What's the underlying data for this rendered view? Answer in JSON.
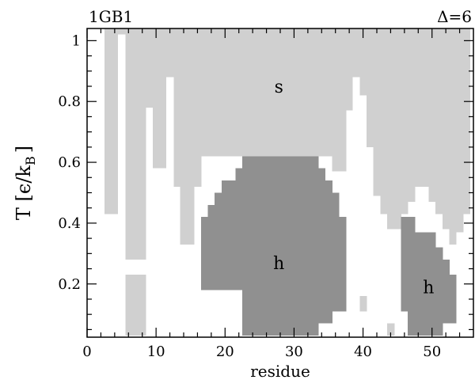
{
  "chart_data": {
    "type": "heatmap",
    "title_left": "1GB1",
    "title_right": "Δ=6",
    "xlabel": "residue",
    "ylabel": {
      "main": "T  [ϵ/k",
      "sub": "B",
      "close": "]"
    },
    "xlim": [
      0,
      56
    ],
    "ylim": [
      0.025,
      1.04
    ],
    "xticks": [
      "0",
      "10",
      "20",
      "30",
      "40",
      "50"
    ],
    "xtick_values": [
      0,
      10,
      20,
      30,
      40,
      50
    ],
    "yticks": [
      "0.2",
      "0.4",
      "0.6",
      "0.8",
      "1"
    ],
    "ytick_values": [
      0.2,
      0.4,
      0.6,
      0.8,
      1.0
    ],
    "colors": {
      "strand": "#d0d0d0",
      "helix": "#909090",
      "coil": "#ffffff",
      "frame": "#000000"
    },
    "region_labels": [
      {
        "text": "s",
        "x": 27.8,
        "y": 0.85,
        "color": "#000000"
      },
      {
        "text": "h",
        "x": 27.8,
        "y": 0.27,
        "color": "#ffffff"
      },
      {
        "text": "h",
        "x": 49.5,
        "y": 0.19,
        "color": "#ffffff"
      }
    ],
    "strand_columns": [
      [
        3,
        0.43
      ],
      [
        4,
        0.43
      ],
      [
        5,
        0.37
      ],
      [
        6,
        0.28
      ],
      [
        7,
        0.28
      ],
      [
        8,
        0.28
      ],
      [
        9,
        0.78
      ],
      [
        10,
        0.58
      ],
      [
        11,
        0.58
      ],
      [
        12,
        0.58
      ],
      [
        13,
        0.52
      ],
      [
        14,
        0.33
      ],
      [
        15,
        0.33
      ],
      [
        16,
        0.52
      ],
      [
        17,
        0.62
      ],
      [
        18,
        0.62
      ],
      [
        19,
        0.62
      ],
      [
        20,
        0.62
      ],
      [
        21,
        0.62
      ],
      [
        22,
        0.62
      ],
      [
        23,
        0.62
      ],
      [
        24,
        0.62
      ],
      [
        25,
        0.62
      ],
      [
        26,
        0.62
      ],
      [
        27,
        0.62
      ],
      [
        28,
        0.62
      ],
      [
        29,
        0.62
      ],
      [
        30,
        0.62
      ],
      [
        31,
        0.62
      ],
      [
        32,
        0.62
      ],
      [
        33,
        0.62
      ],
      [
        34,
        0.62
      ],
      [
        35,
        0.62
      ],
      [
        36,
        0.57
      ],
      [
        37,
        0.57
      ],
      [
        38,
        0.77
      ],
      [
        39,
        0.87
      ],
      [
        40,
        0.82
      ],
      [
        41,
        0.65
      ],
      [
        42,
        0.49
      ],
      [
        43,
        0.43
      ],
      [
        44,
        0.38
      ],
      [
        45,
        0.38
      ],
      [
        46,
        0.43
      ],
      [
        47,
        0.47
      ],
      [
        48,
        0.52
      ],
      [
        49,
        0.52
      ],
      [
        50,
        0.47
      ],
      [
        51,
        0.43
      ],
      [
        52,
        0.38
      ],
      [
        53,
        0.33
      ],
      [
        54,
        0.37
      ],
      [
        55,
        0.43
      ]
    ],
    "strand_extra": [
      [
        6,
        0.03,
        0.23
      ],
      [
        7,
        0.03,
        0.23
      ],
      [
        8,
        0.03,
        0.23
      ],
      [
        40,
        0.11,
        0.16
      ],
      [
        44,
        0.03,
        0.07
      ]
    ],
    "white_spikes": [
      [
        5,
        1.02
      ],
      [
        12,
        0.88
      ],
      [
        39,
        0.88
      ]
    ],
    "helix_columns": [
      [
        17,
        0.18,
        0.42
      ],
      [
        18,
        0.18,
        0.46
      ],
      [
        19,
        0.18,
        0.5
      ],
      [
        20,
        0.18,
        0.54
      ],
      [
        21,
        0.18,
        0.54
      ],
      [
        22,
        0.18,
        0.58
      ],
      [
        23,
        0.03,
        0.62
      ],
      [
        24,
        0.03,
        0.62
      ],
      [
        25,
        0.03,
        0.62
      ],
      [
        26,
        0.03,
        0.62
      ],
      [
        27,
        0.03,
        0.62
      ],
      [
        28,
        0.03,
        0.62
      ],
      [
        29,
        0.03,
        0.62
      ],
      [
        30,
        0.03,
        0.62
      ],
      [
        31,
        0.03,
        0.62
      ],
      [
        32,
        0.03,
        0.62
      ],
      [
        33,
        0.03,
        0.62
      ],
      [
        34,
        0.07,
        0.58
      ],
      [
        35,
        0.07,
        0.54
      ],
      [
        36,
        0.11,
        0.5
      ],
      [
        37,
        0.11,
        0.42
      ],
      [
        46,
        0.11,
        0.42
      ],
      [
        47,
        0.03,
        0.42
      ],
      [
        48,
        0.03,
        0.37
      ],
      [
        49,
        0.03,
        0.37
      ],
      [
        50,
        0.03,
        0.37
      ],
      [
        51,
        0.03,
        0.32
      ],
      [
        52,
        0.07,
        0.28
      ],
      [
        53,
        0.07,
        0.23
      ]
    ]
  }
}
